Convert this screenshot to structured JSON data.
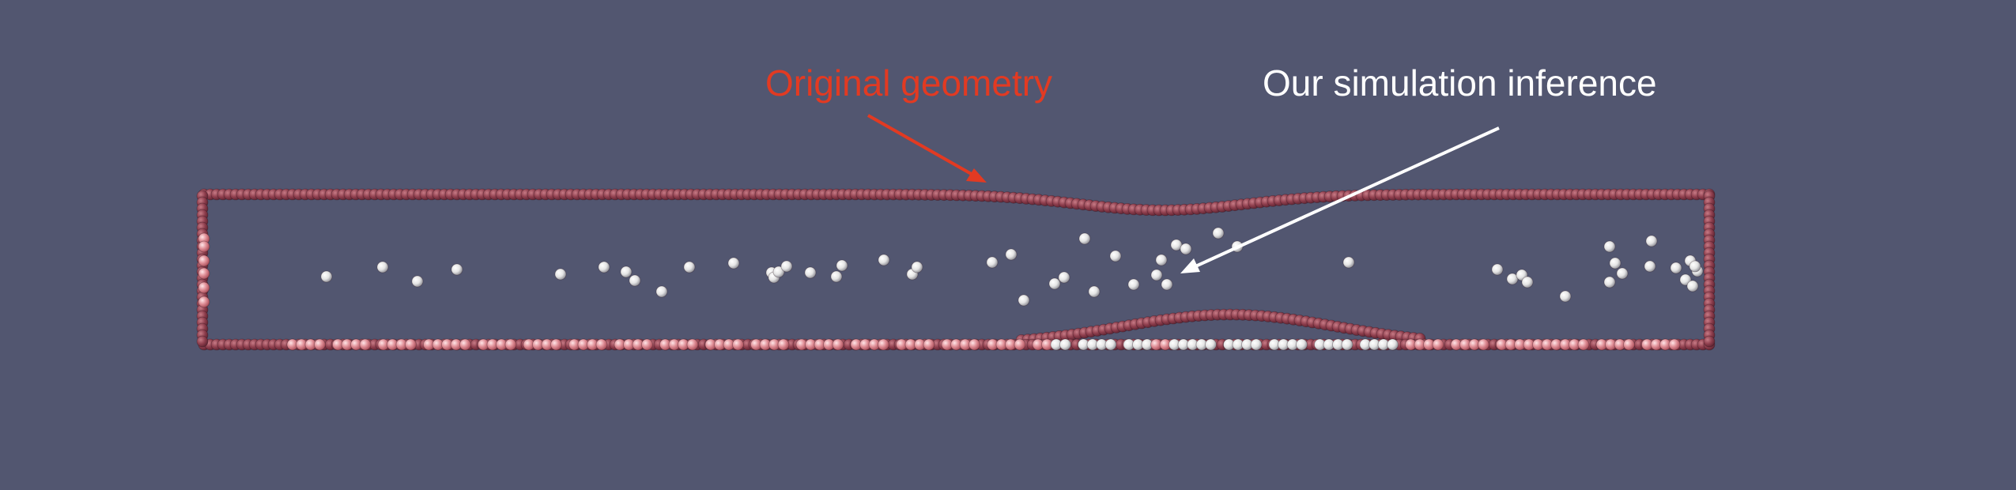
{
  "annotations": {
    "original_geometry": "Original geometry",
    "simulation_inference": "Our simulation inference"
  },
  "colors": {
    "background": "#525670",
    "original_geometry": "#e23a22",
    "simulation_inference": "#ffffff",
    "boundary_particles": "#8c3d4c",
    "bottom_wall_particles": "#d97c84",
    "fluid_particles": "#e6e6e6"
  },
  "icons": {
    "original_arrow": "arrow-icon",
    "inference_arrow": "arrow-icon"
  }
}
